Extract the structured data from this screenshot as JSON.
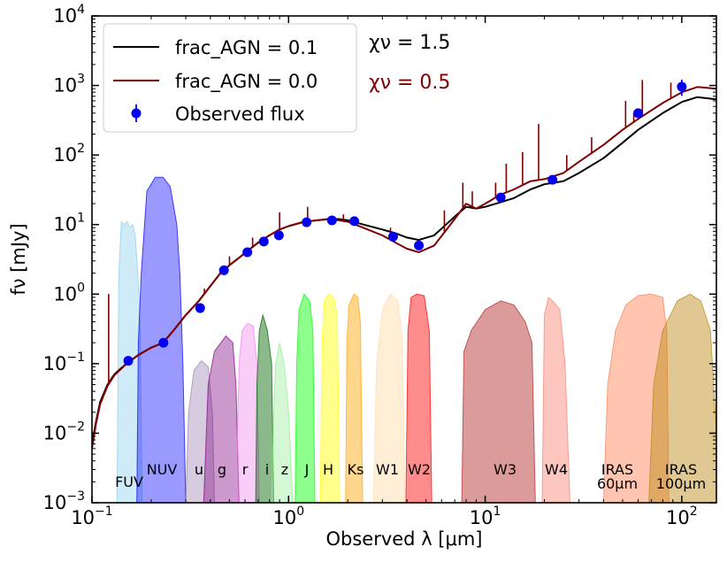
{
  "chart_data": {
    "type": "line",
    "title": "",
    "xlabel": "Observed λ [μm]",
    "ylabel": "fν [mJy]",
    "xscale": "log",
    "yscale": "log",
    "xlim": [
      0.1,
      150
    ],
    "ylim": [
      0.001,
      10000
    ],
    "grid": false,
    "legend_position": "top-left",
    "x_ticks": [
      {
        "value": 0.1,
        "base": "10",
        "exp": "−1"
      },
      {
        "value": 1,
        "base": "10",
        "exp": "0"
      },
      {
        "value": 10,
        "base": "10",
        "exp": "1"
      },
      {
        "value": 100,
        "base": "10",
        "exp": "2"
      }
    ],
    "y_ticks": [
      {
        "value": 0.001,
        "base": "10",
        "exp": "−3"
      },
      {
        "value": 0.01,
        "base": "10",
        "exp": "−2"
      },
      {
        "value": 0.1,
        "base": "10",
        "exp": "−1"
      },
      {
        "value": 1,
        "base": "10",
        "exp": "0"
      },
      {
        "value": 10,
        "base": "10",
        "exp": "1"
      },
      {
        "value": 100,
        "base": "10",
        "exp": "2"
      },
      {
        "value": 1000,
        "base": "10",
        "exp": "3"
      },
      {
        "value": 10000,
        "base": "10",
        "exp": "4"
      }
    ],
    "series": [
      {
        "name": "frac_AGN = 0.1",
        "color": "#000000",
        "x": [
          0.1,
          0.105,
          0.11,
          0.12,
          0.13,
          0.14,
          0.15,
          0.17,
          0.2,
          0.23,
          0.26,
          0.3,
          0.35,
          0.4,
          0.45,
          0.5,
          0.55,
          0.62,
          0.7,
          0.8,
          0.9,
          1.0,
          1.2,
          1.4,
          1.6,
          1.8,
          2.0,
          2.4,
          3.0,
          3.5,
          4.0,
          4.6,
          5.5,
          7.0,
          8.0,
          9.0,
          10,
          12,
          14,
          17,
          20,
          25,
          30,
          40,
          50,
          60,
          80,
          100,
          120,
          150
        ],
        "y": [
          0.007,
          0.015,
          0.028,
          0.05,
          0.07,
          0.085,
          0.1,
          0.13,
          0.17,
          0.2,
          0.3,
          0.5,
          0.8,
          1.3,
          2.0,
          2.6,
          3.2,
          4.2,
          5.5,
          7.0,
          8.5,
          9.5,
          11,
          11.5,
          12,
          12,
          11.5,
          10,
          8.5,
          7.5,
          6.5,
          6,
          7,
          13,
          18,
          17,
          18,
          21,
          24,
          32,
          38,
          42,
          55,
          90,
          150,
          230,
          400,
          580,
          680,
          630
        ]
      },
      {
        "name": "frac_AGN = 0.0",
        "color": "#800000",
        "x": [
          0.1,
          0.105,
          0.11,
          0.12,
          0.13,
          0.14,
          0.15,
          0.17,
          0.2,
          0.23,
          0.26,
          0.3,
          0.35,
          0.4,
          0.45,
          0.5,
          0.55,
          0.62,
          0.7,
          0.8,
          0.9,
          1.0,
          1.2,
          1.4,
          1.6,
          1.8,
          2.0,
          2.4,
          3.0,
          3.5,
          4.0,
          4.6,
          5.5,
          7.0,
          8.0,
          9.0,
          10,
          12,
          14,
          17,
          20,
          25,
          30,
          40,
          50,
          60,
          80,
          100,
          120,
          150
        ],
        "y": [
          0.006,
          0.014,
          0.026,
          0.048,
          0.068,
          0.083,
          0.1,
          0.13,
          0.17,
          0.2,
          0.3,
          0.5,
          0.8,
          1.3,
          2.0,
          2.6,
          3.2,
          4.2,
          5.5,
          7.0,
          8.5,
          9.5,
          11,
          11.5,
          12,
          11.5,
          11,
          9,
          7,
          5.5,
          4.5,
          4,
          5,
          12,
          20,
          17,
          20,
          27,
          32,
          42,
          45,
          55,
          80,
          140,
          230,
          330,
          560,
          800,
          950,
          900
        ]
      }
    ],
    "emission_lines": [
      {
        "x": 0.1216,
        "y": 1.0
      },
      {
        "x": 0.373,
        "y": 1.2
      },
      {
        "x": 0.5007,
        "y": 3.5
      },
      {
        "x": 0.6563,
        "y": 6.5
      },
      {
        "x": 0.9,
        "y": 15
      },
      {
        "x": 1.25,
        "y": 18
      },
      {
        "x": 1.9,
        "y": 14
      },
      {
        "x": 3.3,
        "y": 9
      },
      {
        "x": 6.2,
        "y": 16
      },
      {
        "x": 7.7,
        "y": 40
      },
      {
        "x": 8.6,
        "y": 30
      },
      {
        "x": 11.3,
        "y": 40
      },
      {
        "x": 12.8,
        "y": 75
      },
      {
        "x": 15.5,
        "y": 110
      },
      {
        "x": 18.7,
        "y": 280
      },
      {
        "x": 26,
        "y": 100
      },
      {
        "x": 34.8,
        "y": 180
      },
      {
        "x": 51.8,
        "y": 600
      },
      {
        "x": 57,
        "y": 400
      },
      {
        "x": 63,
        "y": 1200
      },
      {
        "x": 88,
        "y": 1100
      }
    ],
    "observed": {
      "name": "Observed flux",
      "color": "#0000ee",
      "x": [
        0.153,
        0.231,
        0.355,
        0.469,
        0.617,
        0.748,
        0.893,
        1.235,
        1.662,
        2.159,
        3.4,
        4.6,
        12,
        22,
        60,
        100
      ],
      "y": [
        0.11,
        0.2,
        0.63,
        2.2,
        4.0,
        5.7,
        7.0,
        10.8,
        11.5,
        11.2,
        6.7,
        5.0,
        24.5,
        44,
        400,
        960
      ],
      "yerr": [
        0.01,
        0.02,
        0.05,
        0.15,
        0.3,
        0.4,
        0.5,
        0.7,
        0.7,
        0.7,
        0.4,
        0.3,
        2,
        4,
        50,
        250
      ]
    },
    "filters": [
      {
        "label": "FUV",
        "color": "#87ceeb",
        "alpha": 0.4,
        "x": [
          0.134,
          0.137,
          0.141,
          0.146,
          0.151,
          0.156,
          0.161,
          0.166,
          0.171,
          0.176,
          0.18
        ],
        "y": [
          0.001,
          2,
          11,
          10,
          11,
          9,
          10,
          7,
          2,
          0.3,
          0.001
        ]
      },
      {
        "label": "NUV",
        "color": "#0000ff",
        "alpha": 0.4,
        "x": [
          0.169,
          0.172,
          0.178,
          0.19,
          0.21,
          0.23,
          0.25,
          0.27,
          0.28,
          0.29,
          0.3
        ],
        "y": [
          0.001,
          0.2,
          2,
          30,
          48,
          48,
          35,
          10,
          2,
          0.1,
          0.001
        ]
      },
      {
        "label": "u",
        "color": "#9a80b0",
        "alpha": 0.4,
        "x": [
          0.3,
          0.31,
          0.33,
          0.36,
          0.39,
          0.41,
          0.42
        ],
        "y": [
          0.001,
          0.02,
          0.08,
          0.11,
          0.09,
          0.02,
          0.001
        ]
      },
      {
        "label": "g",
        "color": "#800080",
        "alpha": 0.4,
        "x": [
          0.37,
          0.39,
          0.42,
          0.48,
          0.52,
          0.54,
          0.56
        ],
        "y": [
          0.001,
          0.05,
          0.15,
          0.25,
          0.2,
          0.05,
          0.001
        ]
      },
      {
        "label": "r",
        "color": "#ee82ee",
        "alpha": 0.4,
        "x": [
          0.54,
          0.56,
          0.58,
          0.62,
          0.66,
          0.69,
          0.71
        ],
        "y": [
          0.001,
          0.1,
          0.3,
          0.38,
          0.35,
          0.1,
          0.001
        ]
      },
      {
        "label": "i",
        "color": "#006400",
        "alpha": 0.45,
        "x": [
          0.68,
          0.69,
          0.71,
          0.74,
          0.78,
          0.82,
          0.84
        ],
        "y": [
          0.001,
          0.05,
          0.3,
          0.5,
          0.3,
          0.1,
          0.001
        ]
      },
      {
        "label": "z",
        "color": "#90ee90",
        "alpha": 0.4,
        "x": [
          0.82,
          0.84,
          0.86,
          0.9,
          0.95,
          1.0,
          1.05
        ],
        "y": [
          0.001,
          0.02,
          0.1,
          0.2,
          0.1,
          0.02,
          0.001
        ]
      },
      {
        "label": "J",
        "color": "#00ff00",
        "alpha": 0.45,
        "x": [
          1.08,
          1.1,
          1.13,
          1.2,
          1.28,
          1.33,
          1.36
        ],
        "y": [
          0.001,
          0.1,
          0.6,
          1.0,
          0.8,
          0.3,
          0.001
        ]
      },
      {
        "label": "H",
        "color": "#ffff00",
        "alpha": 0.45,
        "x": [
          1.45,
          1.48,
          1.52,
          1.6,
          1.7,
          1.77,
          1.82
        ],
        "y": [
          0.001,
          0.2,
          0.8,
          1.0,
          0.9,
          0.5,
          0.001
        ]
      },
      {
        "label": "Ks",
        "color": "#ffa500",
        "alpha": 0.45,
        "x": [
          1.95,
          1.98,
          2.03,
          2.15,
          2.25,
          2.32,
          2.38
        ],
        "y": [
          0.001,
          0.2,
          0.7,
          1.0,
          0.9,
          0.4,
          0.001
        ]
      },
      {
        "label": "W1",
        "color": "#ffdead",
        "alpha": 0.5,
        "x": [
          2.7,
          2.8,
          3.0,
          3.3,
          3.6,
          3.8,
          3.9
        ],
        "y": [
          0.001,
          0.1,
          0.6,
          1.0,
          0.8,
          0.2,
          0.001
        ]
      },
      {
        "label": "W2",
        "color": "#ff0000",
        "alpha": 0.45,
        "x": [
          3.95,
          4.05,
          4.2,
          4.5,
          4.9,
          5.2,
          5.35
        ],
        "y": [
          0.001,
          0.3,
          0.9,
          1.0,
          0.95,
          0.3,
          0.001
        ]
      },
      {
        "label": "W3",
        "color": "#b22222",
        "alpha": 0.45,
        "x": [
          7.6,
          7.8,
          8.5,
          10,
          12,
          14,
          16,
          17.3,
          18
        ],
        "y": [
          0.001,
          0.15,
          0.3,
          0.6,
          0.8,
          0.7,
          0.4,
          0.2,
          0.001
        ]
      },
      {
        "label": "W4",
        "color": "#fa8072",
        "alpha": 0.45,
        "x": [
          19.5,
          20,
          21,
          22,
          24,
          25.5,
          27
        ],
        "y": [
          0.001,
          0.5,
          0.9,
          0.8,
          0.6,
          0.1,
          0.001
        ]
      },
      {
        "label": "IRAS",
        "sublabel": "60μm",
        "color": "#ff7f50",
        "alpha": 0.45,
        "x": [
          40,
          42,
          46,
          52,
          60,
          70,
          80,
          84,
          86
        ],
        "y": [
          0.001,
          0.05,
          0.3,
          0.7,
          0.95,
          1.0,
          0.9,
          0.3,
          0.001
        ]
      },
      {
        "label": "IRAS",
        "sublabel": "100μm",
        "color": "#b8860b",
        "alpha": 0.45,
        "x": [
          68,
          72,
          80,
          95,
          110,
          125,
          140,
          150
        ],
        "y": [
          0.001,
          0.05,
          0.3,
          0.8,
          1.0,
          0.8,
          0.3,
          0.01
        ]
      }
    ],
    "annotations": [
      {
        "text": "χν = 1.5",
        "color": "#000000"
      },
      {
        "text": "χν = 0.5",
        "color": "#800000"
      }
    ]
  }
}
